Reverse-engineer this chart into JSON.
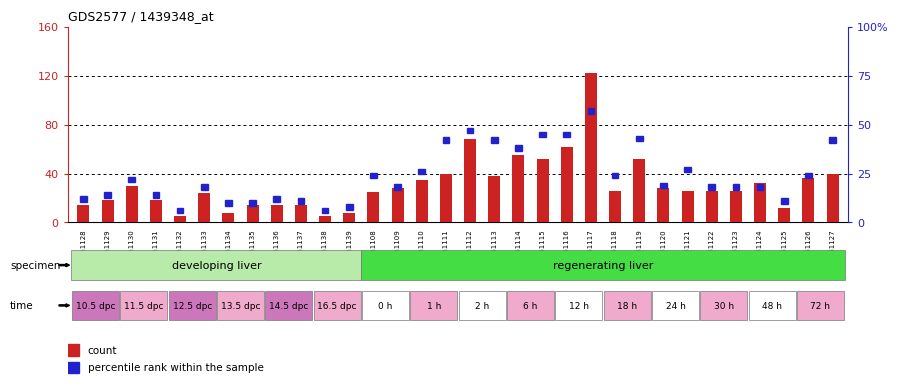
{
  "title": "GDS2577 / 1439348_at",
  "samples": [
    "GSM161128",
    "GSM161129",
    "GSM161130",
    "GSM161131",
    "GSM161132",
    "GSM161133",
    "GSM161134",
    "GSM161135",
    "GSM161136",
    "GSM161137",
    "GSM161138",
    "GSM161139",
    "GSM161108",
    "GSM161109",
    "GSM161110",
    "GSM161111",
    "GSM161112",
    "GSM161113",
    "GSM161114",
    "GSM161115",
    "GSM161116",
    "GSM161117",
    "GSM161118",
    "GSM161119",
    "GSM161120",
    "GSM161121",
    "GSM161122",
    "GSM161123",
    "GSM161124",
    "GSM161125",
    "GSM161126",
    "GSM161127"
  ],
  "count_values": [
    14,
    18,
    30,
    18,
    5,
    24,
    8,
    14,
    14,
    14,
    5,
    8,
    25,
    28,
    35,
    40,
    68,
    38,
    55,
    52,
    62,
    122,
    26,
    52,
    28,
    26,
    26,
    26,
    32,
    12,
    36,
    40
  ],
  "percentile_values": [
    12,
    14,
    22,
    14,
    6,
    18,
    10,
    10,
    12,
    11,
    6,
    8,
    24,
    18,
    26,
    42,
    47,
    42,
    38,
    45,
    45,
    57,
    24,
    43,
    19,
    27,
    18,
    18,
    18,
    11,
    24,
    42
  ],
  "specimen_groups": [
    {
      "label": "developing liver",
      "color": "#b8eaaa",
      "start": 0,
      "end": 12
    },
    {
      "label": "regenerating liver",
      "color": "#44dd44",
      "start": 12,
      "end": 32
    }
  ],
  "time_groups": [
    {
      "label": "10.5 dpc",
      "color": "#cc77bb",
      "start": 0,
      "end": 2
    },
    {
      "label": "11.5 dpc",
      "color": "#f0aacc",
      "start": 2,
      "end": 4
    },
    {
      "label": "12.5 dpc",
      "color": "#cc77bb",
      "start": 4,
      "end": 6
    },
    {
      "label": "13.5 dpc",
      "color": "#f0aacc",
      "start": 6,
      "end": 8
    },
    {
      "label": "14.5 dpc",
      "color": "#cc77bb",
      "start": 8,
      "end": 10
    },
    {
      "label": "16.5 dpc",
      "color": "#f0aacc",
      "start": 10,
      "end": 12
    },
    {
      "label": "0 h",
      "color": "#ffffff",
      "start": 12,
      "end": 14
    },
    {
      "label": "1 h",
      "color": "#f0aacc",
      "start": 14,
      "end": 16
    },
    {
      "label": "2 h",
      "color": "#ffffff",
      "start": 16,
      "end": 18
    },
    {
      "label": "6 h",
      "color": "#f0aacc",
      "start": 18,
      "end": 20
    },
    {
      "label": "12 h",
      "color": "#ffffff",
      "start": 20,
      "end": 22
    },
    {
      "label": "18 h",
      "color": "#f0aacc",
      "start": 22,
      "end": 24
    },
    {
      "label": "24 h",
      "color": "#ffffff",
      "start": 24,
      "end": 26
    },
    {
      "label": "30 h",
      "color": "#f0aacc",
      "start": 26,
      "end": 28
    },
    {
      "label": "48 h",
      "color": "#ffffff",
      "start": 28,
      "end": 30
    },
    {
      "label": "72 h",
      "color": "#f0aacc",
      "start": 30,
      "end": 32
    }
  ],
  "ylim_left": [
    0,
    160
  ],
  "ylim_right": [
    0,
    100
  ],
  "yticks_left": [
    0,
    40,
    80,
    120,
    160
  ],
  "ytick_labels_left": [
    "0",
    "40",
    "80",
    "120",
    "160"
  ],
  "yticks_right": [
    0,
    25,
    50,
    75,
    100
  ],
  "ytick_labels_right": [
    "0",
    "25",
    "50",
    "75",
    "100%"
  ],
  "bar_color": "#cc2222",
  "percentile_color": "#2222cc",
  "background_color": "#ffffff"
}
